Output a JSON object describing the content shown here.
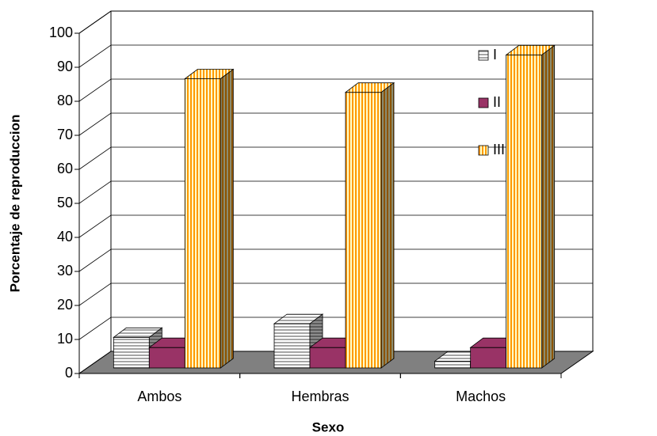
{
  "chart_data": {
    "type": "bar3d",
    "x_label": "Sexo",
    "y_label": "Porcentaje de reproduccion",
    "categories": [
      "Ambos",
      "Hembras",
      "Machos"
    ],
    "series": [
      {
        "name": "I",
        "color": "#a6a6a6",
        "values": [
          9,
          13,
          2
        ]
      },
      {
        "name": "II",
        "color": "#993366",
        "values": [
          6,
          6,
          6
        ]
      },
      {
        "name": "III",
        "color": "#ff9900",
        "values": [
          85,
          81,
          92
        ]
      }
    ],
    "ylim": [
      0,
      100
    ],
    "yticks": [
      0,
      10,
      20,
      30,
      40,
      50,
      60,
      70,
      80,
      90,
      100
    ],
    "grid": true,
    "legend": "right"
  }
}
